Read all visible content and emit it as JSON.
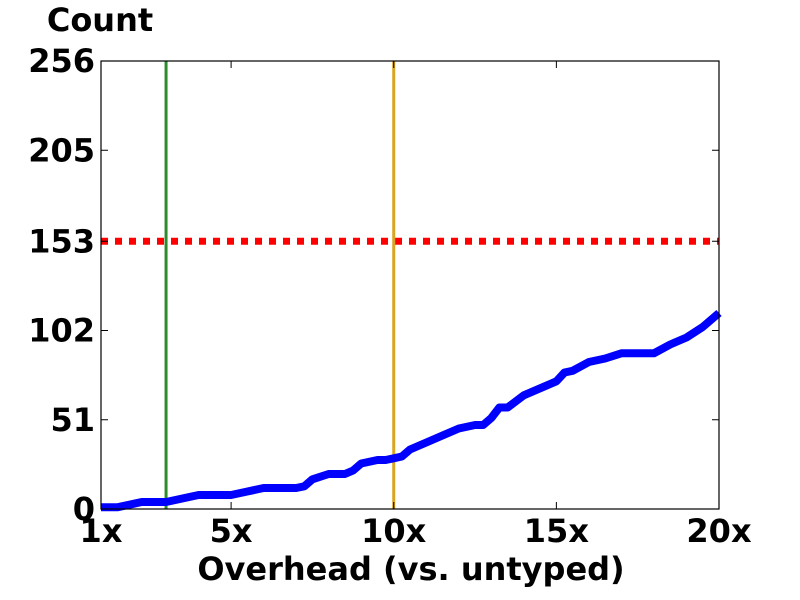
{
  "chart_data": {
    "type": "line",
    "title": "",
    "ylabel": "Count",
    "xlabel": "Overhead  (vs. untyped)",
    "xlim": [
      1,
      20
    ],
    "ylim": [
      0,
      256
    ],
    "x_ticks": [
      1,
      5,
      10,
      15,
      20
    ],
    "x_tick_labels": [
      "1x",
      "5x",
      "10x",
      "15x",
      "20x"
    ],
    "y_ticks": [
      0,
      51,
      102,
      153,
      205,
      256
    ],
    "y_tick_labels": [
      "0",
      "51",
      "102",
      "153",
      "205",
      "256"
    ],
    "grid": false,
    "series": [
      {
        "color": "#0000ff",
        "style": "solid",
        "x": [
          1,
          1.5,
          2,
          2.25,
          3,
          3.5,
          4,
          4.75,
          5,
          5.5,
          6,
          6.25,
          7,
          7.25,
          7.5,
          8,
          8.5,
          8.75,
          9,
          9.5,
          9.75,
          10,
          10.25,
          10.5,
          11,
          11.5,
          12,
          12.5,
          12.75,
          13,
          13.25,
          13.5,
          14,
          14.5,
          15,
          15.25,
          15.5,
          16,
          16.5,
          17,
          17.5,
          18,
          18.5,
          18.75,
          19,
          19.5,
          20
        ],
        "y": [
          1,
          1,
          3,
          4,
          4,
          6,
          8,
          8,
          8,
          10,
          12,
          12,
          12,
          13,
          17,
          20,
          20,
          22,
          26,
          28,
          28,
          29,
          30,
          34,
          38,
          42,
          46,
          48,
          48,
          52,
          58,
          58,
          65,
          69,
          73,
          78,
          79,
          84,
          86,
          89,
          89,
          89,
          94,
          96,
          98,
          104,
          112
        ]
      }
    ],
    "reference_lines": [
      {
        "orientation": "horizontal",
        "value": 153,
        "color": "#ff0000",
        "style": "dotted"
      },
      {
        "orientation": "vertical",
        "value": 3,
        "color": "#2e8b2e",
        "style": "solid"
      },
      {
        "orientation": "vertical",
        "value": 10,
        "color": "#daa520",
        "style": "solid"
      }
    ]
  }
}
